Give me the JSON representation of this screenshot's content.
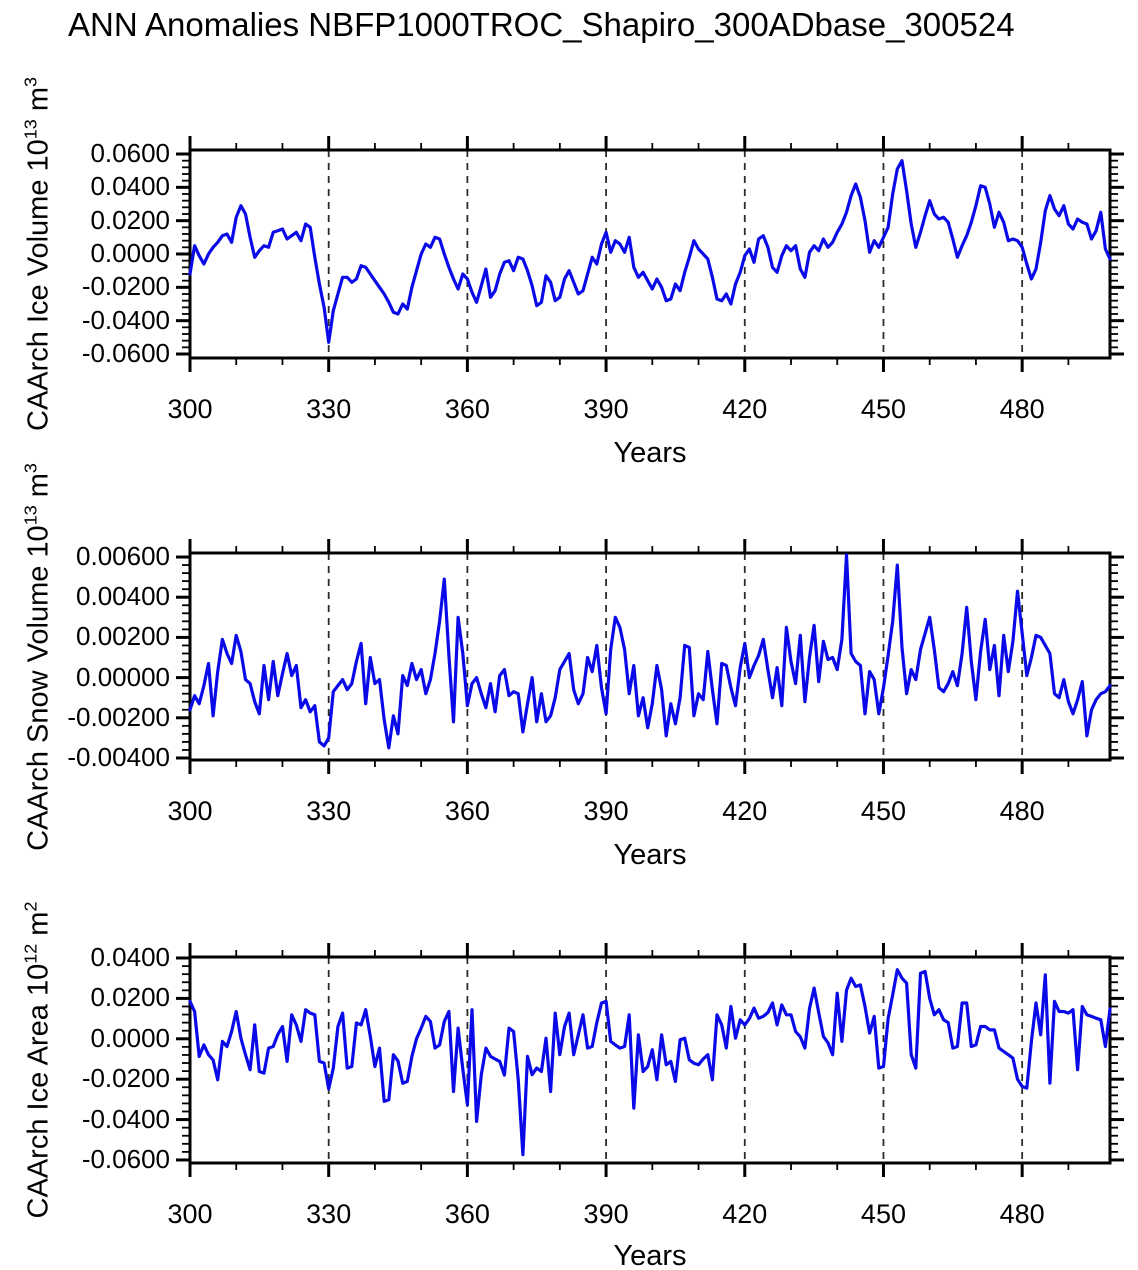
{
  "title": "ANN Anomalies NBFP1000TROC_Shapiro_300ADbase_300524",
  "style": {
    "line_color": "#0a0ae8",
    "axis_color": "#000000",
    "grid_color": "#2b2b2b"
  },
  "chart_data": [
    {
      "type": "line",
      "ylabel": "CAArch Ice Volume 10^13 m^3",
      "ylabel_parts": [
        "CAArch Ice Volume 10",
        "13",
        " m",
        "3"
      ],
      "xlabel": "Years",
      "xlim": [
        300,
        499
      ],
      "ylim": [
        -0.0624,
        0.0624
      ],
      "xticks": [
        300,
        330,
        360,
        390,
        420,
        450,
        480
      ],
      "xminor_step": 10,
      "yticks": [
        0.06,
        0.04,
        0.02,
        0.0,
        -0.02,
        -0.04,
        -0.06
      ],
      "ytick_labels": [
        "0.0600",
        "0.0400",
        "0.0200",
        "0.0000",
        "-0.0200",
        "-0.0400",
        "-0.0600"
      ],
      "yminor_step": 0.004,
      "grid_x": [
        330,
        360,
        390,
        420,
        450,
        480
      ],
      "legend": "none",
      "x_start": 300,
      "x_step": 1,
      "values": [
        -0.012,
        0.005,
        -0.001,
        -0.006,
        0.0,
        0.004,
        0.007,
        0.011,
        0.012,
        0.007,
        0.022,
        0.029,
        0.024,
        0.01,
        -0.002,
        0.002,
        0.005,
        0.004,
        0.013,
        0.014,
        0.015,
        0.009,
        0.011,
        0.013,
        0.008,
        0.018,
        0.016,
        -0.002,
        -0.018,
        -0.032,
        -0.053,
        -0.034,
        -0.024,
        -0.014,
        -0.014,
        -0.017,
        -0.015,
        -0.007,
        -0.008,
        -0.012,
        -0.016,
        -0.02,
        -0.024,
        -0.029,
        -0.035,
        -0.036,
        -0.03,
        -0.033,
        -0.02,
        -0.01,
        0.0,
        0.006,
        0.004,
        0.01,
        0.009,
        0.0,
        -0.008,
        -0.015,
        -0.021,
        -0.012,
        -0.015,
        -0.023,
        -0.029,
        -0.019,
        -0.009,
        -0.026,
        -0.022,
        -0.012,
        -0.005,
        -0.004,
        -0.01,
        -0.002,
        -0.003,
        -0.01,
        -0.019,
        -0.031,
        -0.029,
        -0.013,
        -0.017,
        -0.028,
        -0.026,
        -0.015,
        -0.01,
        -0.017,
        -0.024,
        -0.022,
        -0.012,
        -0.002,
        -0.006,
        0.006,
        0.013,
        0.001,
        0.008,
        0.006,
        0.001,
        0.01,
        -0.008,
        -0.014,
        -0.011,
        -0.016,
        -0.021,
        -0.015,
        -0.02,
        -0.028,
        -0.027,
        -0.018,
        -0.022,
        -0.011,
        -0.002,
        0.008,
        0.003,
        0.0,
        -0.003,
        -0.014,
        -0.027,
        -0.028,
        -0.024,
        -0.03,
        -0.018,
        -0.011,
        -0.001,
        0.003,
        -0.005,
        0.009,
        0.011,
        0.004,
        -0.008,
        -0.011,
        -0.001,
        0.005,
        0.002,
        0.005,
        -0.009,
        -0.014,
        0.001,
        0.005,
        0.002,
        0.009,
        0.004,
        0.007,
        0.013,
        0.018,
        0.025,
        0.035,
        0.042,
        0.034,
        0.02,
        0.001,
        0.008,
        0.004,
        0.01,
        0.016,
        0.036,
        0.051,
        0.056,
        0.038,
        0.018,
        0.004,
        0.013,
        0.023,
        0.032,
        0.024,
        0.021,
        0.022,
        0.019,
        0.009,
        -0.002,
        0.005,
        0.011,
        0.019,
        0.029,
        0.041,
        0.04,
        0.03,
        0.016,
        0.025,
        0.019,
        0.008,
        0.009,
        0.008,
        0.004,
        -0.006,
        -0.015,
        -0.009,
        0.007,
        0.026,
        0.035,
        0.027,
        0.023,
        0.029,
        0.018,
        0.015,
        0.021,
        0.019,
        0.018,
        0.009,
        0.014,
        0.025,
        0.003,
        -0.003
      ]
    },
    {
      "type": "line",
      "ylabel": "CAArch Snow Volume 10^13 m^3",
      "ylabel_parts": [
        "CAArch Snow Volume 10",
        "13",
        " m",
        "3"
      ],
      "xlabel": "Years",
      "xlim": [
        300,
        499
      ],
      "ylim": [
        -0.0041,
        0.0062
      ],
      "xticks": [
        300,
        330,
        360,
        390,
        420,
        450,
        480
      ],
      "xminor_step": 10,
      "yticks": [
        0.006,
        0.004,
        0.002,
        0.0,
        -0.002,
        -0.004
      ],
      "ytick_labels": [
        "0.00600",
        "0.00400",
        "0.00200",
        "0.00000",
        "-0.00200",
        "-0.00400"
      ],
      "yminor_step": 0.0004,
      "grid_x": [
        330,
        360,
        390,
        420,
        450,
        480
      ],
      "legend": "none",
      "x_start": 300,
      "x_step": 1,
      "values": [
        -0.0016,
        -0.0009,
        -0.0013,
        -0.0004,
        0.0007,
        -0.0019,
        0.0003,
        0.0019,
        0.0012,
        0.0007,
        0.0021,
        0.0013,
        -0.0001,
        -0.0003,
        -0.0012,
        -0.0018,
        0.0006,
        -0.0011,
        0.0008,
        -0.0009,
        0.0002,
        0.0012,
        0.0001,
        0.0006,
        -0.0015,
        -0.0011,
        -0.0017,
        -0.0014,
        -0.0032,
        -0.0034,
        -0.003,
        -0.0007,
        -0.0004,
        -0.0001,
        -0.0006,
        -0.0003,
        0.0008,
        0.0017,
        -0.0013,
        0.001,
        -0.0003,
        -0.0001,
        -0.0021,
        -0.0035,
        -0.0019,
        -0.0028,
        0.0001,
        -0.0004,
        0.0007,
        -0.0001,
        0.0004,
        -0.0008,
        -0.0001,
        0.0012,
        0.0028,
        0.0049,
        0.0011,
        -0.0022,
        0.003,
        0.0012,
        -0.0014,
        -0.0003,
        0.0,
        -0.0008,
        -0.0015,
        -0.0003,
        -0.0017,
        0.0001,
        0.0004,
        -0.0009,
        -0.0007,
        -0.0008,
        -0.0027,
        -0.0013,
        0.0,
        -0.0022,
        -0.0008,
        -0.0022,
        -0.0019,
        -0.001,
        0.0004,
        0.0008,
        0.0012,
        -0.0006,
        -0.0013,
        -0.0008,
        0.001,
        0.0003,
        0.0016,
        -0.0005,
        -0.0018,
        0.0014,
        0.003,
        0.0025,
        0.0014,
        -0.0008,
        0.0006,
        -0.0019,
        -0.001,
        -0.0025,
        -0.0013,
        0.0006,
        -0.0006,
        -0.0029,
        -0.0013,
        -0.0023,
        -0.001,
        0.0016,
        0.0015,
        -0.0019,
        -0.0008,
        -0.0011,
        0.0013,
        -0.0006,
        -0.0023,
        0.0007,
        0.0006,
        -0.0005,
        -0.0014,
        0.0005,
        0.0017,
        0.0,
        0.0006,
        0.0011,
        0.0019,
        0.0004,
        -0.001,
        0.0005,
        -0.0014,
        0.0025,
        0.0008,
        -0.0003,
        0.0021,
        -0.0012,
        0.001,
        0.0026,
        -0.0002,
        0.0018,
        0.0009,
        0.001,
        0.0004,
        0.0019,
        0.0061,
        0.0012,
        0.0008,
        0.0006,
        -0.0018,
        0.0003,
        -0.0001,
        -0.0018,
        -0.0005,
        0.0011,
        0.0028,
        0.0056,
        0.0015,
        -0.0008,
        0.0004,
        -0.0001,
        0.0014,
        0.0022,
        0.003,
        0.0014,
        -0.0005,
        -0.0007,
        -0.0003,
        0.0003,
        -0.0004,
        0.0012,
        0.0035,
        0.0008,
        -0.0011,
        0.0013,
        0.0029,
        0.0004,
        0.0016,
        -0.0009,
        0.0021,
        0.0003,
        0.0018,
        0.0043,
        0.0022,
        0.0001,
        0.001,
        0.0021,
        0.002,
        0.0016,
        0.0012,
        -0.0008,
        -0.001,
        -0.0001,
        -0.0012,
        -0.0018,
        -0.0011,
        -0.0002,
        -0.0029,
        -0.0016,
        -0.0011,
        -0.0008,
        -0.0007,
        -0.0004
      ]
    },
    {
      "type": "line",
      "ylabel": "CAArch Ice Area 10^12 m^2",
      "ylabel_parts": [
        "CAArch Ice Area 10",
        "12",
        " m",
        "2"
      ],
      "xlabel": "Years",
      "xlim": [
        300,
        499
      ],
      "ylim": [
        -0.0615,
        0.0405
      ],
      "xticks": [
        300,
        330,
        360,
        390,
        420,
        450,
        480
      ],
      "xminor_step": 10,
      "yticks": [
        0.04,
        0.02,
        0.0,
        -0.02,
        -0.04,
        -0.06
      ],
      "ytick_labels": [
        "0.0400",
        "0.0200",
        "0.0000",
        "-0.0200",
        "-0.0400",
        "-0.0600"
      ],
      "yminor_step": 0.004,
      "grid_x": [
        330,
        360,
        390,
        420,
        450,
        480
      ],
      "legend": "none",
      "x_start": 300,
      "x_step": 1,
      "values": [
        0.0185,
        0.0135,
        -0.0087,
        -0.003,
        -0.0079,
        -0.0105,
        -0.0203,
        -0.0013,
        -0.0038,
        0.0036,
        0.0135,
        0.0003,
        -0.0079,
        -0.0153,
        0.0069,
        -0.0162,
        -0.017,
        -0.0046,
        -0.0038,
        0.0021,
        0.0061,
        -0.0112,
        0.0119,
        0.0069,
        -0.0013,
        0.0144,
        0.0127,
        0.0119,
        -0.0112,
        -0.012,
        -0.0248,
        -0.0145,
        0.006,
        0.0127,
        -0.0145,
        -0.0137,
        0.0078,
        0.0069,
        0.0144,
        0.0012,
        -0.0137,
        -0.0046,
        -0.031,
        -0.0302,
        -0.0079,
        -0.011,
        -0.022,
        -0.0211,
        -0.0087,
        0.0,
        0.0053,
        0.0111,
        0.0086,
        -0.0046,
        -0.003,
        0.0086,
        0.0135,
        -0.0261,
        0.0053,
        -0.015,
        -0.0327,
        0.0144,
        -0.0409,
        -0.0178,
        -0.0046,
        -0.0087,
        -0.01,
        -0.0112,
        -0.018,
        0.0053,
        0.0036,
        -0.02,
        -0.0574,
        -0.0087,
        -0.0178,
        -0.0145,
        -0.0162,
        0.0003,
        -0.0261,
        0.0127,
        -0.0079,
        0.006,
        0.0127,
        -0.0079,
        0.002,
        0.0119,
        -0.0046,
        -0.0038,
        0.008,
        0.0177,
        0.0185,
        -0.0013,
        -0.003,
        -0.0046,
        -0.0038,
        0.0119,
        -0.0343,
        0.002,
        -0.0162,
        -0.0137,
        -0.0054,
        -0.0203,
        0.002,
        -0.0129,
        -0.0112,
        -0.0211,
        -0.0005,
        0.0003,
        -0.0104,
        -0.0121,
        -0.0129,
        -0.01,
        -0.0079,
        -0.0203,
        0.0119,
        0.0069,
        -0.0046,
        0.016,
        0.0003,
        0.0094,
        0.0069,
        0.01,
        0.0152,
        0.0102,
        0.0111,
        0.013,
        0.0177,
        0.0069,
        0.0168,
        0.0119,
        0.0119,
        0.0036,
        0.001,
        -0.0046,
        0.015,
        0.0251,
        0.013,
        0.0012,
        -0.002,
        -0.0079,
        0.0226,
        -0.0013,
        0.024,
        0.03,
        0.0259,
        0.0267,
        0.016,
        0.0028,
        0.0111,
        -0.0145,
        -0.0137,
        0.01,
        0.0218,
        0.0342,
        0.03,
        0.0276,
        -0.0079,
        -0.0145,
        0.0325,
        0.0333,
        0.02,
        0.0119,
        0.0144,
        0.0094,
        0.008,
        -0.0046,
        -0.0038,
        0.0177,
        0.0177,
        -0.0038,
        -0.003,
        0.0061,
        0.0061,
        0.0044,
        0.0044,
        -0.0046,
        -0.0063,
        -0.0079,
        -0.0096,
        -0.02,
        -0.0236,
        -0.0244,
        -0.0013,
        0.0177,
        0.002,
        0.0317,
        -0.022,
        0.0185,
        0.0135,
        0.0135,
        0.0127,
        0.0144,
        -0.0153,
        0.016,
        0.0119,
        0.0111,
        0.0102,
        0.0094,
        -0.0038,
        0.0148
      ]
    }
  ]
}
